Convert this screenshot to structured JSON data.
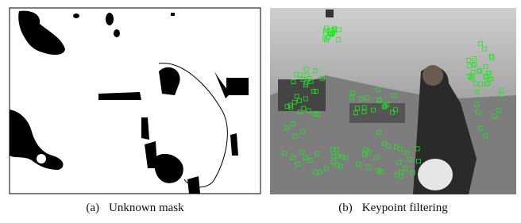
{
  "figure": {
    "subfigures": [
      {
        "label": "(a)",
        "caption": "Unknown mask"
      },
      {
        "label": "(b)",
        "caption": "Keypoint filtering"
      }
    ]
  }
}
